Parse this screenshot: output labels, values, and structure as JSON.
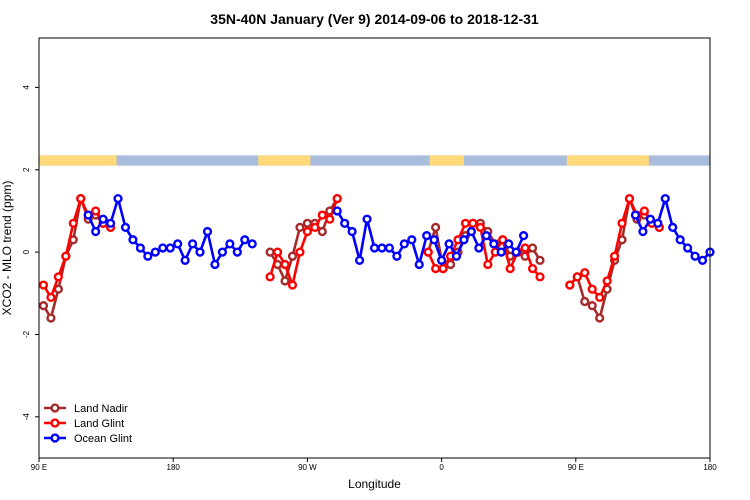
{
  "chart_data": {
    "type": "line",
    "title": "35N-40N January (Ver 9)   2014-09-06 to 2018-12-31",
    "xlabel": "Longitude",
    "ylabel": "XCO2 - MLO trend (ppm)",
    "xlim": [
      90,
      540
    ],
    "ylim": [
      -5,
      5.2
    ],
    "x_ticks": [
      {
        "value": 90,
        "label": "90 E"
      },
      {
        "value": 180,
        "label": "180"
      },
      {
        "value": 270,
        "label": "90 W"
      },
      {
        "value": 360,
        "label": "0"
      },
      {
        "value": 450,
        "label": "90 E"
      },
      {
        "value": 540,
        "label": "180"
      }
    ],
    "y_ticks": [
      {
        "value": -4,
        "label": "-4"
      },
      {
        "value": -2,
        "label": "-2"
      },
      {
        "value": 0,
        "label": "0"
      },
      {
        "value": 2,
        "label": "2"
      },
      {
        "value": 4,
        "label": "4"
      }
    ],
    "legend_position": "bottom-left",
    "landmask": {
      "y_range": [
        2.1,
        2.35
      ],
      "land_color": "#ffd97a",
      "ocean_color": "#a9bcdc",
      "land_spans": [
        [
          90,
          142
        ],
        [
          237,
          272
        ],
        [
          352,
          375
        ],
        [
          444,
          499
        ]
      ]
    },
    "series": [
      {
        "name": "Land Nadir",
        "color": "#a52a2a",
        "segments": [
          [
            [
              93,
              -1.3
            ],
            [
              98,
              -1.6
            ],
            [
              103,
              -0.9
            ],
            [
              108,
              -0.1
            ],
            [
              113,
              0.3
            ],
            [
              118,
              1.3
            ],
            [
              123,
              0.8
            ],
            [
              128,
              0.9
            ],
            [
              133,
              0.7
            ],
            [
              138,
              0.6
            ]
          ],
          [
            [
              245,
              0.0
            ],
            [
              250,
              -0.3
            ],
            [
              255,
              -0.7
            ],
            [
              260,
              -0.1
            ],
            [
              265,
              0.6
            ],
            [
              270,
              0.7
            ],
            [
              275,
              0.7
            ],
            [
              280,
              0.5
            ],
            [
              285,
              1.0
            ],
            [
              290,
              1.3
            ]
          ],
          [
            [
              351,
              0.0
            ],
            [
              356,
              0.6
            ],
            [
              361,
              -0.4
            ],
            [
              366,
              -0.3
            ],
            [
              371,
              0.0
            ],
            [
              376,
              0.4
            ],
            [
              381,
              0.7
            ],
            [
              386,
              0.7
            ],
            [
              391,
              0.5
            ],
            [
              396,
              0.2
            ],
            [
              401,
              0.3
            ],
            [
              406,
              -0.1
            ],
            [
              411,
              0.0
            ],
            [
              416,
              -0.1
            ],
            [
              421,
              0.1
            ],
            [
              426,
              -0.2
            ]
          ],
          [
            [
              446,
              -0.8
            ],
            [
              451,
              -0.6
            ],
            [
              456,
              -1.2
            ],
            [
              461,
              -1.3
            ],
            [
              466,
              -1.6
            ],
            [
              471,
              -0.9
            ],
            [
              476,
              -0.2
            ],
            [
              481,
              0.3
            ],
            [
              486,
              1.3
            ],
            [
              491,
              0.8
            ],
            [
              496,
              0.9
            ],
            [
              501,
              0.7
            ],
            [
              506,
              0.6
            ]
          ]
        ]
      },
      {
        "name": "Land Glint",
        "color": "#ff0000",
        "segments": [
          [
            [
              93,
              -0.8
            ],
            [
              98,
              -1.1
            ],
            [
              103,
              -0.6
            ],
            [
              108,
              -0.1
            ],
            [
              113,
              0.7
            ],
            [
              118,
              1.3
            ],
            [
              123,
              0.9
            ],
            [
              128,
              1.0
            ],
            [
              133,
              0.7
            ],
            [
              138,
              0.6
            ]
          ],
          [
            [
              245,
              -0.6
            ],
            [
              250,
              0.0
            ],
            [
              255,
              -0.3
            ],
            [
              260,
              -0.8
            ],
            [
              265,
              0.0
            ],
            [
              270,
              0.5
            ],
            [
              275,
              0.6
            ],
            [
              280,
              0.9
            ],
            [
              285,
              0.8
            ],
            [
              290,
              1.3
            ]
          ],
          [
            [
              351,
              0.0
            ],
            [
              356,
              -0.4
            ],
            [
              361,
              -0.4
            ],
            [
              366,
              -0.1
            ],
            [
              371,
              0.3
            ],
            [
              376,
              0.7
            ],
            [
              381,
              0.7
            ],
            [
              386,
              0.6
            ],
            [
              391,
              -0.3
            ],
            [
              396,
              0.0
            ],
            [
              401,
              0.3
            ],
            [
              406,
              -0.4
            ],
            [
              411,
              0.0
            ],
            [
              416,
              0.1
            ],
            [
              421,
              -0.4
            ],
            [
              426,
              -0.6
            ]
          ],
          [
            [
              446,
              -0.8
            ],
            [
              451,
              -0.6
            ],
            [
              456,
              -0.5
            ],
            [
              461,
              -0.9
            ],
            [
              466,
              -1.1
            ],
            [
              471,
              -0.7
            ],
            [
              476,
              -0.1
            ],
            [
              481,
              0.7
            ],
            [
              486,
              1.3
            ],
            [
              491,
              0.9
            ],
            [
              496,
              1.0
            ],
            [
              501,
              0.7
            ],
            [
              506,
              0.6
            ]
          ]
        ]
      },
      {
        "name": "Ocean Glint",
        "color": "#0000ff",
        "segments": [
          [
            [
              123,
              0.9
            ],
            [
              128,
              0.5
            ],
            [
              133,
              0.8
            ],
            [
              138,
              0.7
            ],
            [
              143,
              1.3
            ],
            [
              148,
              0.6
            ],
            [
              153,
              0.3
            ],
            [
              158,
              0.1
            ],
            [
              163,
              -0.1
            ],
            [
              168,
              0.0
            ],
            [
              173,
              0.1
            ],
            [
              178,
              0.1
            ],
            [
              183,
              0.2
            ],
            [
              188,
              -0.2
            ],
            [
              193,
              0.2
            ],
            [
              198,
              0.0
            ],
            [
              203,
              0.5
            ],
            [
              208,
              -0.3
            ],
            [
              213,
              0.0
            ],
            [
              218,
              0.2
            ],
            [
              223,
              0.0
            ],
            [
              228,
              0.3
            ],
            [
              233,
              0.2
            ]
          ],
          [
            [
              290,
              1.0
            ],
            [
              295,
              0.7
            ],
            [
              300,
              0.5
            ],
            [
              305,
              -0.2
            ],
            [
              310,
              0.8
            ],
            [
              315,
              0.1
            ],
            [
              320,
              0.1
            ],
            [
              325,
              0.1
            ],
            [
              330,
              -0.1
            ],
            [
              335,
              0.2
            ],
            [
              340,
              0.3
            ],
            [
              345,
              -0.3
            ],
            [
              350,
              0.4
            ],
            [
              355,
              0.3
            ],
            [
              360,
              -0.2
            ],
            [
              365,
              0.2
            ],
            [
              370,
              -0.1
            ],
            [
              375,
              0.3
            ],
            [
              380,
              0.5
            ],
            [
              385,
              0.1
            ],
            [
              390,
              0.4
            ],
            [
              395,
              0.2
            ],
            [
              400,
              0.0
            ],
            [
              405,
              0.2
            ],
            [
              410,
              0.0
            ],
            [
              415,
              0.4
            ]
          ],
          [
            [
              490,
              0.9
            ],
            [
              495,
              0.5
            ],
            [
              500,
              0.8
            ],
            [
              505,
              0.7
            ],
            [
              510,
              1.3
            ],
            [
              515,
              0.6
            ],
            [
              520,
              0.3
            ],
            [
              525,
              0.1
            ],
            [
              530,
              -0.1
            ],
            [
              535,
              -0.2
            ],
            [
              540,
              0.0
            ]
          ]
        ]
      }
    ]
  }
}
